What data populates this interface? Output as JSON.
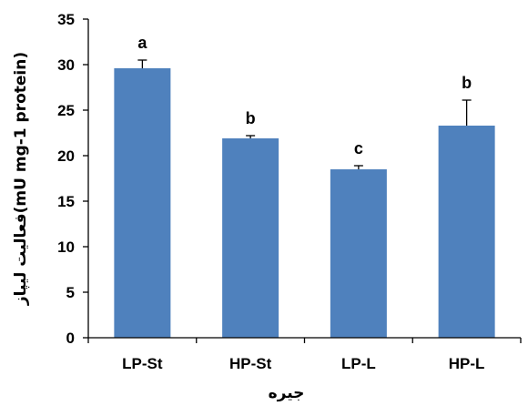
{
  "chart_data": {
    "type": "bar",
    "categories": [
      "LP-St",
      "HP-St",
      "LP-L",
      "HP-L"
    ],
    "values": [
      29.6,
      21.9,
      18.5,
      23.3
    ],
    "errors": [
      0.9,
      0.3,
      0.4,
      2.8
    ],
    "significance": [
      "a",
      "b",
      "c",
      "b"
    ],
    "ylim": [
      0,
      35
    ],
    "yticks": [
      "0",
      "5",
      "10",
      "15",
      "20",
      "25",
      "30",
      "35"
    ],
    "xlabel": "جیره",
    "ylabel": "فعالیت لیپاز(mU mg-1 protein)",
    "grid": false,
    "legend": "none",
    "bar_color": "#4F81BD"
  }
}
